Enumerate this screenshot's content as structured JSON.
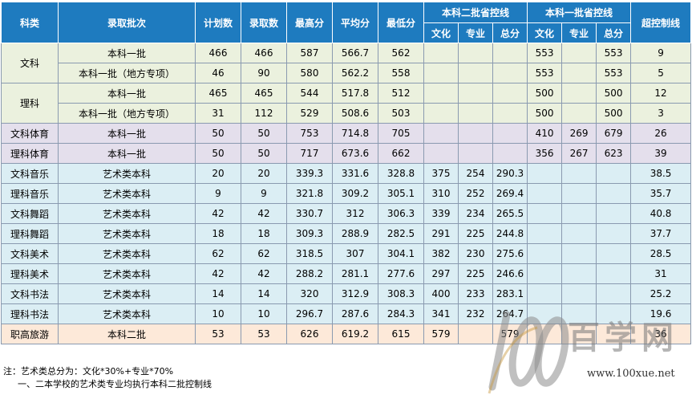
{
  "header": {
    "category": "科类",
    "batch": "录取批次",
    "plan": "计划数",
    "admitted": "录取数",
    "max": "最高分",
    "avg": "平均分",
    "min": "最低分",
    "group_second": "本科二批省控线",
    "group_first": "本科一批省控线",
    "over": "超控制线",
    "sub_culture": "文化",
    "sub_major": "专业",
    "sub_total": "总分"
  },
  "rows": [
    {
      "cat": "文科",
      "batch": "本科一批",
      "plan": "466",
      "admitted": "466",
      "max": "587",
      "avg": "566.7",
      "min": "562",
      "s2c": "",
      "s2m": "",
      "s2t": "",
      "s1c": "553",
      "s1m": "",
      "s1t": "553",
      "over": "9"
    },
    {
      "cat": "",
      "batch": "本科一批（地方专项）",
      "plan": "46",
      "admitted": "90",
      "max": "580",
      "avg": "562.2",
      "min": "558",
      "s2c": "",
      "s2m": "",
      "s2t": "",
      "s1c": "553",
      "s1m": "",
      "s1t": "553",
      "over": "5"
    },
    {
      "cat": "理科",
      "batch": "本科一批",
      "plan": "465",
      "admitted": "465",
      "max": "544",
      "avg": "517.8",
      "min": "512",
      "s2c": "",
      "s2m": "",
      "s2t": "",
      "s1c": "500",
      "s1m": "",
      "s1t": "500",
      "over": "12"
    },
    {
      "cat": "",
      "batch": "本科一批（地方专项）",
      "plan": "31",
      "admitted": "112",
      "max": "529",
      "avg": "508.6",
      "min": "503",
      "s2c": "",
      "s2m": "",
      "s2t": "",
      "s1c": "500",
      "s1m": "",
      "s1t": "500",
      "over": "3"
    },
    {
      "cat": "文科体育",
      "batch": "本科一批",
      "plan": "50",
      "admitted": "50",
      "max": "753",
      "avg": "714.8",
      "min": "705",
      "s2c": "",
      "s2m": "",
      "s2t": "",
      "s1c": "410",
      "s1m": "269",
      "s1t": "679",
      "over": "26"
    },
    {
      "cat": "理科体育",
      "batch": "本科一批",
      "plan": "50",
      "admitted": "50",
      "max": "717",
      "avg": "673.6",
      "min": "662",
      "s2c": "",
      "s2m": "",
      "s2t": "",
      "s1c": "356",
      "s1m": "267",
      "s1t": "623",
      "over": "39"
    },
    {
      "cat": "文科音乐",
      "batch": "艺术类本科",
      "plan": "20",
      "admitted": "20",
      "max": "339.3",
      "avg": "331.6",
      "min": "328.8",
      "s2c": "375",
      "s2m": "254",
      "s2t": "290.3",
      "s1c": "",
      "s1m": "",
      "s1t": "",
      "over": "38.5"
    },
    {
      "cat": "理科音乐",
      "batch": "艺术类本科",
      "plan": "9",
      "admitted": "9",
      "max": "321.8",
      "avg": "309.2",
      "min": "305.1",
      "s2c": "310",
      "s2m": "252",
      "s2t": "269.4",
      "s1c": "",
      "s1m": "",
      "s1t": "",
      "over": "35.7"
    },
    {
      "cat": "文科舞蹈",
      "batch": "艺术类本科",
      "plan": "42",
      "admitted": "42",
      "max": "330.7",
      "avg": "312",
      "min": "306.3",
      "s2c": "339",
      "s2m": "234",
      "s2t": "265.5",
      "s1c": "",
      "s1m": "",
      "s1t": "",
      "over": "40.8"
    },
    {
      "cat": "理科舞蹈",
      "batch": "艺术类本科",
      "plan": "18",
      "admitted": "18",
      "max": "309.3",
      "avg": "288.9",
      "min": "282.5",
      "s2c": "291",
      "s2m": "225",
      "s2t": "244.8",
      "s1c": "",
      "s1m": "",
      "s1t": "",
      "over": "37.7"
    },
    {
      "cat": "文科美术",
      "batch": "艺术类本科",
      "plan": "62",
      "admitted": "62",
      "max": "318.5",
      "avg": "307",
      "min": "304.1",
      "s2c": "382",
      "s2m": "230",
      "s2t": "275.6",
      "s1c": "",
      "s1m": "",
      "s1t": "",
      "over": "28.5"
    },
    {
      "cat": "理科美术",
      "batch": "艺术类本科",
      "plan": "42",
      "admitted": "42",
      "max": "288.2",
      "avg": "281.1",
      "min": "277.6",
      "s2c": "297",
      "s2m": "225",
      "s2t": "246.6",
      "s1c": "",
      "s1m": "",
      "s1t": "",
      "over": "31"
    },
    {
      "cat": "文科书法",
      "batch": "艺术类本科",
      "plan": "14",
      "admitted": "14",
      "max": "320",
      "avg": "312.9",
      "min": "308.3",
      "s2c": "400",
      "s2m": "233",
      "s2t": "283.1",
      "s1c": "",
      "s1m": "",
      "s1t": "",
      "over": "25.2"
    },
    {
      "cat": "理科书法",
      "batch": "艺术类本科",
      "plan": "10",
      "admitted": "10",
      "max": "296.7",
      "avg": "287.6",
      "min": "284.3",
      "s2c": "341",
      "s2m": "232",
      "s2t": "264.7",
      "s1c": "",
      "s1m": "",
      "s1t": "",
      "over": "19.6"
    },
    {
      "cat": "职高旅游",
      "batch": "本科二批",
      "plan": "53",
      "admitted": "53",
      "max": "626",
      "avg": "619.2",
      "min": "615",
      "s2c": "579",
      "s2m": "",
      "s2t": "579",
      "s1c": "",
      "s1m": "",
      "s1t": "",
      "over": "36"
    }
  ],
  "notes": {
    "line1": "注：艺术类总分为：文化*30%+专业*70%",
    "line2": "一、二本学校的艺术类专业均执行本科二批控制线"
  },
  "watermark": {
    "logo_text": "100",
    "brand": "百学网",
    "url": "www.100xue.net"
  },
  "colors": {
    "header_bg": "#1e7bbf",
    "green_bg": "#ebf1de",
    "purple_bg": "#e4dfec",
    "blue_bg": "#dbeef4",
    "peach_bg": "#fde9d9"
  }
}
